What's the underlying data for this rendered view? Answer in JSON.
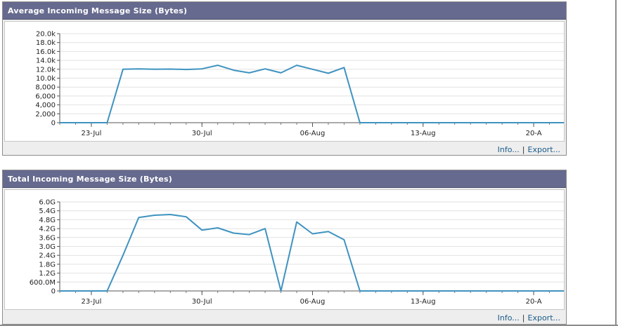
{
  "panels": [
    {
      "title": "Average Incoming Message Size (Bytes)",
      "links": {
        "info": "Info...",
        "separator": "|",
        "export": "Export..."
      }
    },
    {
      "title": "Total Incoming Message Size (Bytes)",
      "links": {
        "info": "Info...",
        "separator": "|",
        "export": "Export..."
      }
    }
  ],
  "colors": {
    "line": "#3f93c0",
    "header": "#666a8e",
    "grid": "#e2e2e2"
  },
  "chart_data": [
    {
      "type": "line",
      "title": "Average Incoming Message Size (Bytes)",
      "ylim": [
        0,
        20000
      ],
      "yticks": [
        0,
        2000,
        4000,
        6000,
        8000,
        10000,
        12000,
        14000,
        16000,
        18000,
        20000
      ],
      "ytick_labels": [
        "0",
        "2,000",
        "4,000",
        "6,000",
        "8,000",
        "10.0k",
        "12.0k",
        "14.0k",
        "16.0k",
        "18.0k",
        "20.0k"
      ],
      "xlim": [
        0,
        32
      ],
      "xticks": [
        2,
        9,
        16,
        23,
        30
      ],
      "xtick_labels": [
        "23-Jul",
        "30-Jul",
        "06-Aug",
        "13-Aug",
        "20-A"
      ],
      "x": [
        0,
        1,
        2,
        3,
        4,
        5,
        6,
        7,
        8,
        9,
        10,
        11,
        12,
        13,
        14,
        15,
        16,
        17,
        18,
        19,
        20,
        21,
        22,
        23,
        24,
        25,
        26,
        27,
        28,
        29,
        30,
        31,
        32
      ],
      "series": [
        {
          "values": [
            0,
            0,
            0,
            0,
            12000,
            12100,
            12000,
            12050,
            11950,
            12100,
            12900,
            11800,
            11200,
            12100,
            11200,
            12900,
            12000,
            11100,
            12400,
            0,
            0,
            0,
            0,
            0,
            0,
            0,
            0,
            0,
            0,
            0,
            0,
            0,
            0
          ]
        }
      ]
    },
    {
      "type": "line",
      "title": "Total Incoming Message Size (Bytes)",
      "ylim": [
        0,
        6000000000
      ],
      "yticks": [
        0,
        600000000,
        1200000000,
        1800000000,
        2400000000,
        3000000000,
        3600000000,
        4200000000,
        4800000000,
        5400000000,
        6000000000
      ],
      "ytick_labels": [
        "0",
        "600.0M",
        "1.2G",
        "1.8G",
        "2.4G",
        "3.0G",
        "3.6G",
        "4.2G",
        "4.8G",
        "5.4G",
        "6.0G"
      ],
      "xlim": [
        0,
        32
      ],
      "xticks": [
        2,
        9,
        16,
        23,
        30
      ],
      "xtick_labels": [
        "23-Jul",
        "30-Jul",
        "06-Aug",
        "13-Aug",
        "20-A"
      ],
      "x": [
        0,
        1,
        2,
        3,
        4,
        5,
        6,
        7,
        8,
        9,
        10,
        11,
        12,
        13,
        14,
        15,
        16,
        17,
        18,
        19,
        20,
        21,
        22,
        23,
        24,
        25,
        26,
        27,
        28,
        29,
        30,
        31,
        32
      ],
      "series": [
        {
          "values": [
            0,
            0,
            0,
            0,
            2400000000,
            4950000000,
            5100000000,
            5150000000,
            5000000000,
            4100000000,
            4250000000,
            3900000000,
            3800000000,
            4200000000,
            0,
            4650000000,
            3850000000,
            4000000000,
            3450000000,
            0,
            0,
            0,
            0,
            0,
            0,
            0,
            0,
            0,
            0,
            0,
            0,
            0,
            0
          ]
        }
      ]
    }
  ]
}
